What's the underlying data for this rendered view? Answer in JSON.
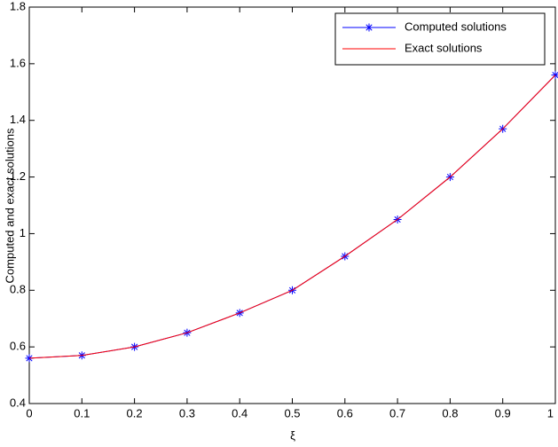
{
  "chart_data": {
    "type": "line",
    "xlabel": "ξ",
    "ylabel": "Computed and exact solutions",
    "x": [
      0,
      0.1,
      0.2,
      0.3,
      0.4,
      0.5,
      0.6,
      0.7,
      0.8,
      0.9,
      1
    ],
    "series": [
      {
        "name": "Computed solutions",
        "color": "#0000ff",
        "marker": "*",
        "values": [
          0.56,
          0.57,
          0.6,
          0.65,
          0.72,
          0.8,
          0.92,
          1.05,
          1.2,
          1.37,
          1.56
        ]
      },
      {
        "name": "Exact solutions",
        "color": "#ff0000",
        "values": [
          0.56,
          0.57,
          0.6,
          0.65,
          0.72,
          0.8,
          0.92,
          1.05,
          1.2,
          1.37,
          1.56
        ]
      }
    ],
    "xlim": [
      0,
      1
    ],
    "xticks": [
      0,
      0.1,
      0.2,
      0.3,
      0.4,
      0.5,
      0.6,
      0.7,
      0.8,
      0.9,
      1
    ],
    "ylim": [
      0.4,
      1.8
    ],
    "yticks": [
      0.4,
      0.6,
      0.8,
      1,
      1.2,
      1.4,
      1.6,
      1.8
    ],
    "grid": false,
    "legend": "top-right"
  }
}
